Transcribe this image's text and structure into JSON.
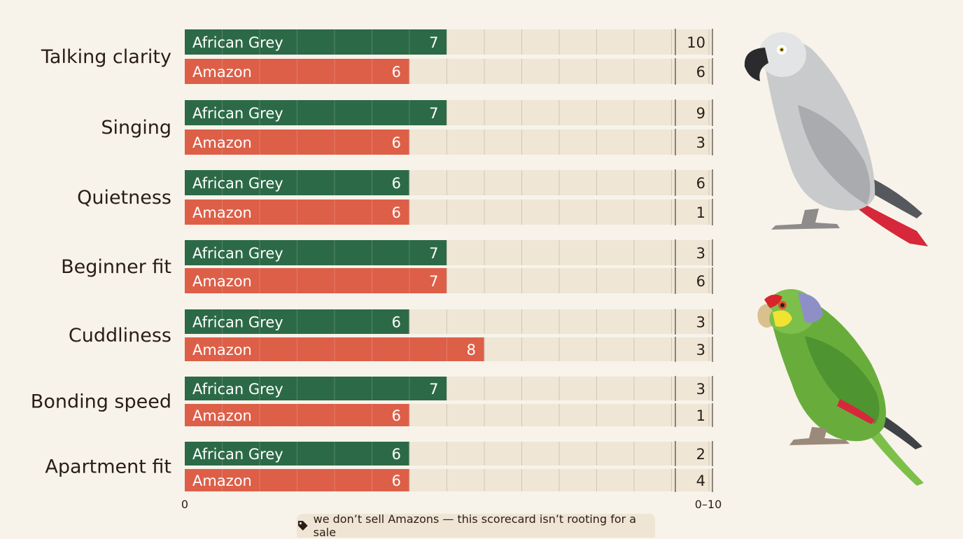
{
  "chart_data": {
    "type": "bar",
    "orientation": "horizontal",
    "categories": [
      "Talking clarity",
      "Singing",
      "Quietness",
      "Beginner fit",
      "Cuddliness",
      "Bonding speed",
      "Apartment fit"
    ],
    "series": [
      {
        "name": "African Grey",
        "values": [
          7,
          7,
          6,
          7,
          6,
          7,
          6
        ],
        "right_values": [
          10,
          9,
          6,
          3,
          3,
          3,
          2
        ]
      },
      {
        "name": "Amazon",
        "values": [
          6,
          6,
          6,
          7,
          8,
          6,
          6
        ],
        "right_values": [
          6,
          3,
          1,
          6,
          3,
          1,
          4
        ]
      }
    ],
    "series_colors": [
      "#2c6a47",
      "#dd5f48"
    ],
    "xlim": [
      0,
      10
    ],
    "x_start_label": "0",
    "x_end_label": "0–10",
    "grid": true
  },
  "footnote": {
    "icon": "tag-icon",
    "text": "we don’t sell Amazons — this scorecard isn’t rooting for a sale"
  },
  "illustrations": [
    "african-grey-parrot-illustration",
    "amazon-parrot-illustration"
  ]
}
